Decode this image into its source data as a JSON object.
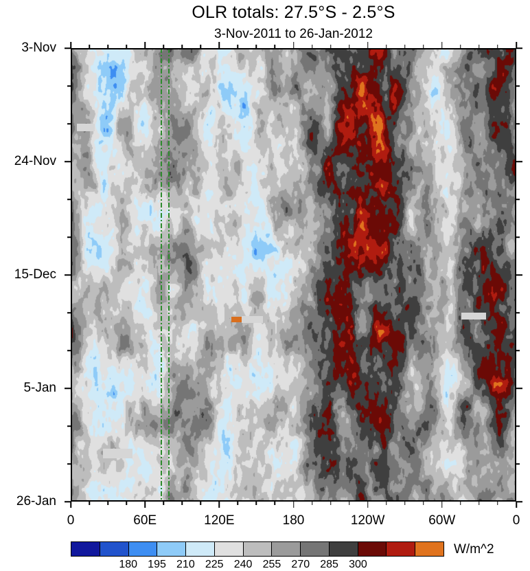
{
  "title": "OLR totals: 27.5°S - 2.5°S",
  "subtitle": "3-Nov-2011 to 26-Jan-2012",
  "chart_data": {
    "type": "heatmap",
    "title": "OLR totals: 27.5°S - 2.5°S",
    "subtitle": "3-Nov-2011 to 26-Jan-2012",
    "xlabel": "",
    "ylabel": "",
    "x_axis": {
      "tick_labels": [
        "0",
        "60E",
        "120E",
        "180",
        "120W",
        "60W",
        "0"
      ],
      "tick_degrees": [
        0,
        60,
        120,
        180,
        240,
        300,
        360
      ],
      "minor_step_degrees": 15,
      "range_degrees": [
        0,
        360
      ]
    },
    "y_axis": {
      "tick_labels": [
        "3-Nov",
        "24-Nov",
        "15-Dec",
        "5-Jan",
        "26-Jan"
      ],
      "minor_divisions": 12,
      "start_date": "3-Nov-2011",
      "end_date": "26-Jan-2012",
      "orientation": "time-increases-downward"
    },
    "colorbar": {
      "unit": "W/m^2",
      "tick_labels": [
        "180",
        "195",
        "210",
        "225",
        "240",
        "255",
        "270",
        "285",
        "300"
      ],
      "levels": [
        165,
        180,
        195,
        210,
        225,
        240,
        255,
        270,
        285,
        300,
        315,
        330
      ],
      "colors": [
        "#11189d",
        "#2153cc",
        "#3e8ef2",
        "#8ecbf8",
        "#cfeaf8",
        "#e0e0e0",
        "#bdbdbd",
        "#9b9b9b",
        "#757575",
        "#3f3f3f",
        "#6b0a06",
        "#b01c10",
        "#e0731e"
      ]
    },
    "field": {
      "units": "W/m^2",
      "base_value": 266,
      "noise_amplitude": 54,
      "low_olr_bands": [
        {
          "center_deg": 25,
          "sigma_deg": 18,
          "depth": 30,
          "drift_deg": 0
        },
        {
          "center_deg": 62,
          "sigma_deg": 10,
          "depth": 22,
          "drift_deg": 0
        },
        {
          "center_deg": 135,
          "sigma_deg": 32,
          "depth": 33,
          "drift_deg": 15
        },
        {
          "center_deg": 300,
          "sigma_deg": 15,
          "depth": 30,
          "drift_deg": 0
        }
      ],
      "high_olr_bands": [
        {
          "center_deg": 240,
          "sigma_deg": 30,
          "amplitude": 26
        },
        {
          "center_deg": 345,
          "sigma_deg": 16,
          "amplitude": 28
        }
      ]
    },
    "overlays": {
      "green_reference_lines_deg": [
        72.5,
        78.5
      ],
      "missing_data_bars": [
        {
          "x": 0.014,
          "y": 0.167,
          "w": 0.04,
          "h": 0.017,
          "color": "#d6d6d6"
        },
        {
          "x": 0.384,
          "y": 0.591,
          "w": 0.048,
          "h": 0.015,
          "color": "#d6d6d6"
        },
        {
          "x": 0.072,
          "y": 0.883,
          "w": 0.066,
          "h": 0.021,
          "color": "#d6d6d6"
        },
        {
          "x": 0.877,
          "y": 0.583,
          "w": 0.055,
          "h": 0.015,
          "color": "#d6d6d6"
        }
      ],
      "extra_marks": [
        {
          "x": 0.36,
          "y": 0.592,
          "w": 0.023,
          "h": 0.012,
          "color": "#d96f1e"
        }
      ]
    }
  }
}
